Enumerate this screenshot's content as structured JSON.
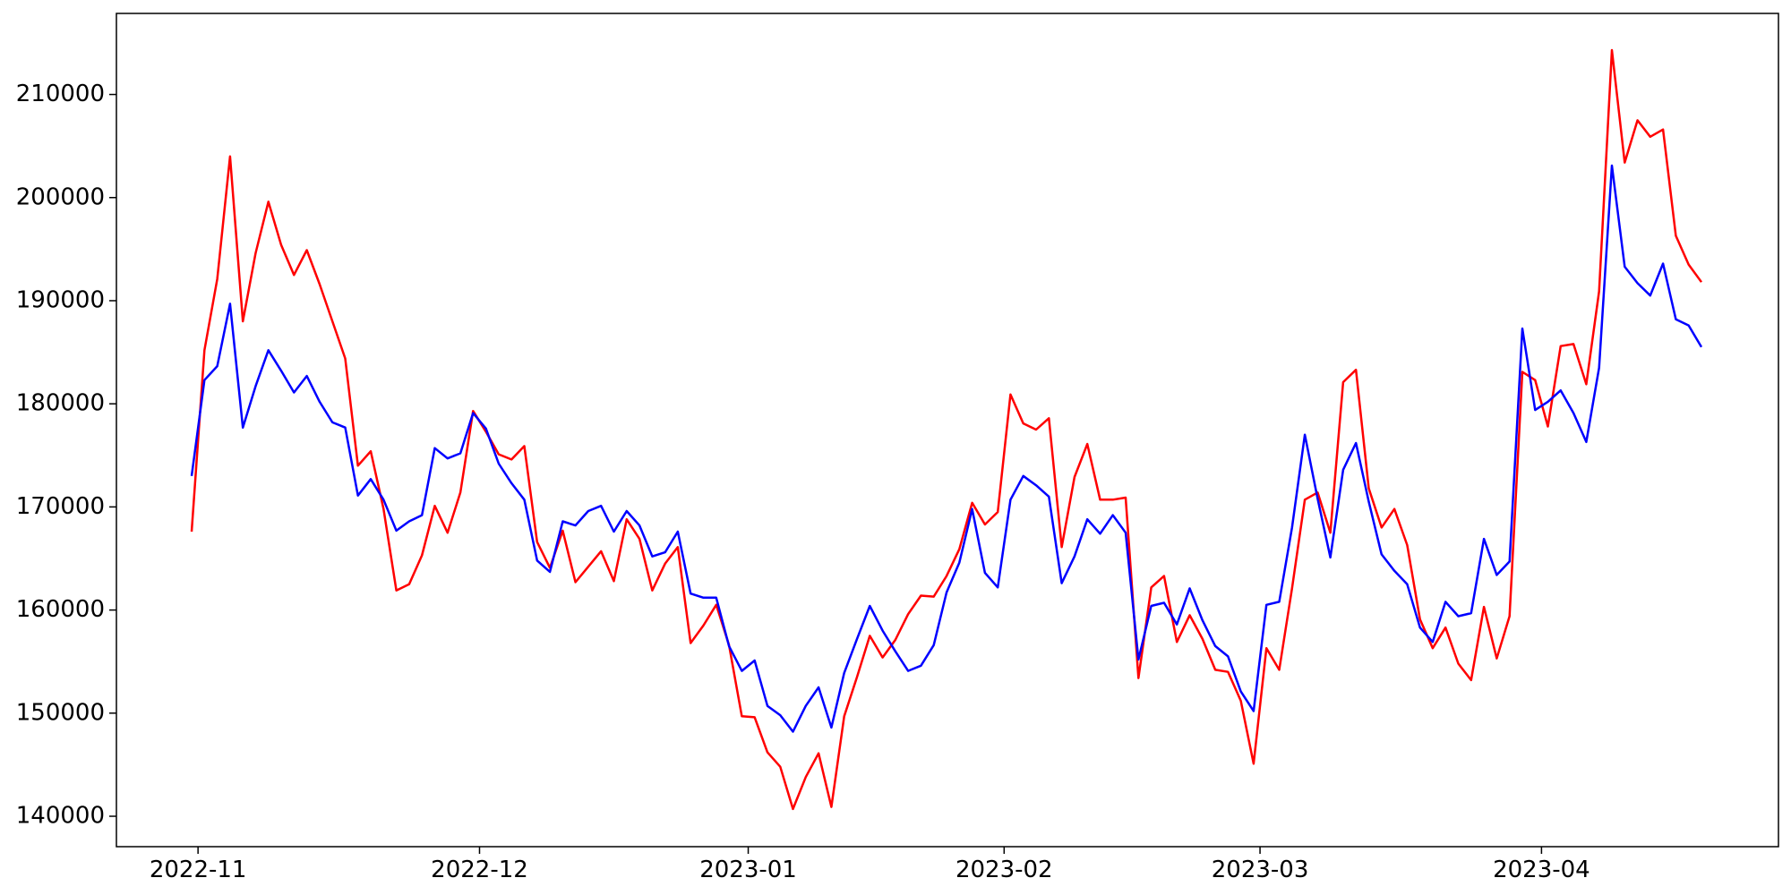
{
  "chart_data": {
    "type": "line",
    "x": [
      "2022-10",
      "2022-11",
      "2022-11",
      "2022-11",
      "2022-11",
      "2022-11",
      "2022-11",
      "2022-11",
      "2022-11",
      "2022-11",
      "2022-11",
      "2022-11",
      "2022-11",
      "2022-11",
      "2022-11",
      "2022-11",
      "2022-11",
      "2022-11",
      "2022-11",
      "2022-11",
      "2022-11",
      "2022-11",
      "2022-11",
      "2022-12",
      "2022-12",
      "2022-12",
      "2022-12",
      "2022-12",
      "2022-12",
      "2022-12",
      "2022-12",
      "2022-12",
      "2022-12",
      "2022-12",
      "2022-12",
      "2022-12",
      "2022-12",
      "2022-12",
      "2022-12",
      "2022-12",
      "2022-12",
      "2022-12",
      "2022-12",
      "2022-12",
      "2023-01",
      "2023-01",
      "2023-01",
      "2023-01",
      "2023-01",
      "2023-01",
      "2023-01",
      "2023-01",
      "2023-01",
      "2023-01",
      "2023-01",
      "2023-01",
      "2023-01",
      "2023-01",
      "2023-01",
      "2023-01",
      "2023-01",
      "2023-01",
      "2023-01",
      "2023-01",
      "2023-02",
      "2023-02",
      "2023-02",
      "2023-02",
      "2023-02",
      "2023-02",
      "2023-02",
      "2023-02",
      "2023-02",
      "2023-02",
      "2023-02",
      "2023-02",
      "2023-02",
      "2023-02",
      "2023-02",
      "2023-02",
      "2023-02",
      "2023-02",
      "2023-02",
      "2023-02",
      "2023-03",
      "2023-03",
      "2023-03",
      "2023-03",
      "2023-03",
      "2023-03",
      "2023-03",
      "2023-03",
      "2023-03",
      "2023-03",
      "2023-03",
      "2023-03",
      "2023-03",
      "2023-03",
      "2023-03",
      "2023-03",
      "2023-03",
      "2023-03",
      "2023-03",
      "2023-03",
      "2023-03",
      "2023-03",
      "2023-04",
      "2023-04",
      "2023-04",
      "2023-04",
      "2023-04",
      "2023-04",
      "2023-04",
      "2023-04",
      "2023-04",
      "2023-04",
      "2023-04",
      "2023-04",
      "2023-04"
    ],
    "series": [
      {
        "color": "#ff0000",
        "values": [
          167600,
          185200,
          192100,
          204000,
          188000,
          194600,
          199600,
          195400,
          192500,
          194900,
          191600,
          188000,
          184400,
          174000,
          175400,
          169800,
          161900,
          162500,
          165300,
          170100,
          167500,
          171400,
          179300,
          177300,
          175100,
          174600,
          175900,
          166600,
          164100,
          167700,
          162700,
          164200,
          165700,
          162800,
          168800,
          166900,
          161900,
          164500,
          166100,
          156800,
          158500,
          160500,
          156600,
          149700,
          149600,
          146200,
          144800,
          140700,
          143800,
          146100,
          140900,
          149700,
          153500,
          157500,
          155400,
          157100,
          159600,
          161400,
          161300,
          163300,
          165900,
          170400,
          168300,
          169500,
          180900,
          178100,
          177500,
          178600,
          166100,
          172900,
          176100,
          170700,
          170700,
          170900,
          153400,
          162200,
          163300,
          156900,
          159500,
          157200,
          154200,
          154000,
          151200,
          145100,
          156300,
          154200,
          162100,
          170700,
          171400,
          167500,
          182100,
          183300,
          171800,
          168000,
          169800,
          166300,
          159100,
          156300,
          158300,
          154800,
          153200,
          160300,
          155300,
          159400,
          183100,
          182300,
          177800,
          185600,
          185800,
          181900,
          190900,
          214300,
          203400,
          207500,
          205900,
          206600,
          196300,
          193500,
          191800
        ]
      },
      {
        "color": "#0000ff",
        "values": [
          173000,
          182300,
          183650,
          189700,
          177700,
          181700,
          185200,
          183200,
          181100,
          182700,
          180200,
          178200,
          177700,
          171100,
          172700,
          170700,
          167700,
          168600,
          169200,
          175700,
          174700,
          175200,
          179100,
          177600,
          174200,
          172300,
          170700,
          164800,
          163700,
          168600,
          168200,
          169600,
          170100,
          167600,
          169600,
          168200,
          165200,
          165600,
          167600,
          161600,
          161200,
          161200,
          156500,
          154100,
          155100,
          150700,
          149800,
          148200,
          150700,
          152500,
          148600,
          153900,
          157200,
          160400,
          158000,
          156000,
          154100,
          154600,
          156600,
          161700,
          164600,
          169800,
          163600,
          162200,
          170700,
          173000,
          172100,
          171000,
          162600,
          165200,
          168800,
          167400,
          169200,
          167500,
          155200,
          160400,
          160700,
          158600,
          162100,
          159000,
          156500,
          155500,
          152100,
          150200,
          160500,
          160800,
          168000,
          177000,
          170800,
          165100,
          173600,
          176200,
          170500,
          165400,
          163800,
          162500,
          158300,
          156900,
          160800,
          159400,
          159700,
          166900,
          163400,
          164700,
          187300,
          179400,
          180200,
          181300,
          179100,
          176300,
          183500,
          203100,
          193300,
          191700,
          190500,
          193600,
          188200,
          187600,
          185500
        ]
      }
    ],
    "xticks": [
      "2022-11",
      "2022-12",
      "2023-01",
      "2023-02",
      "2023-03",
      "2023-04"
    ],
    "ylim": [
      137050,
      217860
    ],
    "yticks": [
      140000,
      150000,
      160000,
      170000,
      180000,
      190000,
      200000,
      210000
    ]
  }
}
